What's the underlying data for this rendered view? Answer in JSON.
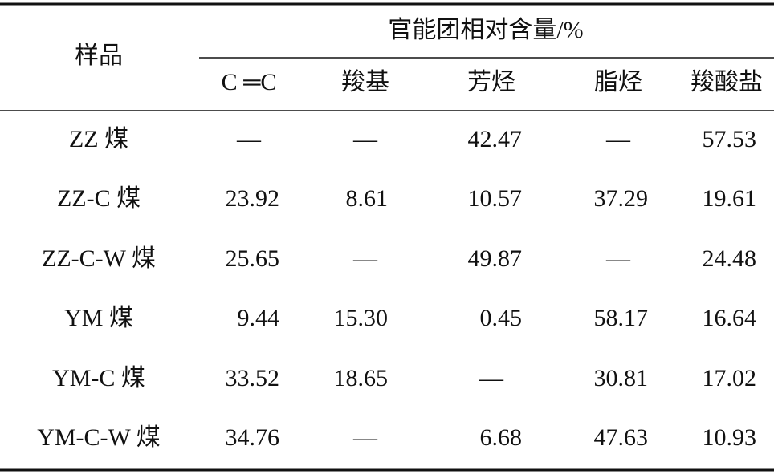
{
  "table": {
    "stub_header": "样品",
    "group_header": "官能团相对含量/%",
    "columns": [
      "C ═C",
      "羧基",
      "芳烃",
      "脂烃",
      "羧酸盐"
    ],
    "rows": [
      [
        "ZZ 煤",
        "—",
        "—",
        "42.47",
        "—",
        "57.53"
      ],
      [
        "ZZ-C 煤",
        "23.92",
        "8.61",
        "10.57",
        "37.29",
        "19.61"
      ],
      [
        "ZZ-C-W 煤",
        "25.65",
        "—",
        "49.87",
        "—",
        "24.48"
      ],
      [
        "YM 煤",
        "9.44",
        "15.30",
        "0.45",
        "58.17",
        "16.64"
      ],
      [
        "YM-C 煤",
        "33.52",
        "18.65",
        "—",
        "30.81",
        "17.02"
      ],
      [
        "YM-C-W 煤",
        "34.76",
        "—",
        "6.68",
        "47.63",
        "10.93"
      ]
    ]
  }
}
